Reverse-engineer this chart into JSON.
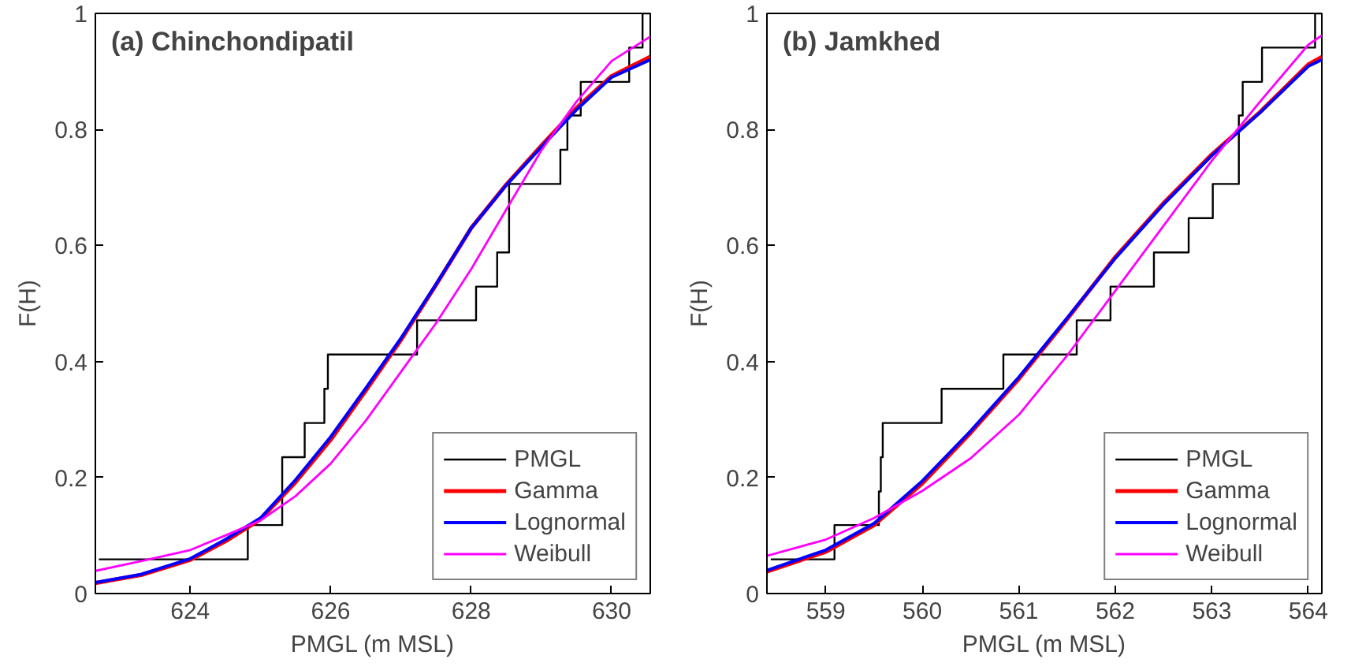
{
  "chart_data": [
    {
      "type": "line",
      "annotations": [
        "(a) Chinchondipatil"
      ],
      "xlabel": "PMGL (m MSL)",
      "ylabel": "F(H)",
      "xlim": [
        622.65,
        630.55
      ],
      "ylim": [
        0,
        1
      ],
      "xticks": [
        624,
        626,
        628,
        630
      ],
      "yticks": [
        0,
        0.2,
        0.4,
        0.6,
        0.8,
        1
      ],
      "grid": false,
      "legend": "bottom right",
      "series": [
        {
          "name": "PMGL",
          "type": "step",
          "color": "#000000",
          "x": [
            622.7,
            624.82,
            625.31,
            625.63,
            625.91,
            625.96,
            627.23,
            628.07,
            628.37,
            628.54,
            629.27,
            629.37,
            629.56,
            630.25,
            630.44,
            630.55
          ],
          "values": [
            0.059,
            0.118,
            0.235,
            0.294,
            0.353,
            0.412,
            0.471,
            0.529,
            0.588,
            0.706,
            0.765,
            0.824,
            0.882,
            0.941,
            1.0,
            1.0
          ]
        },
        {
          "name": "Gamma",
          "color": "#ff0000",
          "x": [
            622.65,
            623.3,
            624,
            624.5,
            625,
            625.5,
            626,
            626.5,
            627,
            627.5,
            628,
            628.5,
            629,
            629.5,
            630,
            630.55
          ],
          "values": [
            0.018,
            0.032,
            0.058,
            0.09,
            0.128,
            0.192,
            0.265,
            0.35,
            0.437,
            0.532,
            0.63,
            0.705,
            0.772,
            0.837,
            0.892,
            0.925
          ]
        },
        {
          "name": "Lognormal",
          "color": "#0000ff",
          "x": [
            622.65,
            623.3,
            624,
            624.5,
            625,
            625.5,
            626,
            626.5,
            627,
            627.5,
            628,
            628.5,
            629,
            629.5,
            630,
            630.55
          ],
          "values": [
            0.019,
            0.033,
            0.06,
            0.093,
            0.13,
            0.196,
            0.27,
            0.354,
            0.44,
            0.533,
            0.63,
            0.704,
            0.77,
            0.834,
            0.89,
            0.92
          ]
        },
        {
          "name": "Weibull",
          "color": "#ff00ff",
          "x": [
            622.65,
            623.3,
            624,
            624.5,
            625,
            625.5,
            626,
            626.5,
            627,
            627.5,
            628,
            628.5,
            629,
            629.5,
            630,
            630.55
          ],
          "values": [
            0.039,
            0.056,
            0.075,
            0.1,
            0.126,
            0.168,
            0.224,
            0.298,
            0.382,
            0.466,
            0.559,
            0.662,
            0.764,
            0.848,
            0.918,
            0.96
          ]
        }
      ]
    },
    {
      "type": "line",
      "annotations": [
        "(b) Jamkhed"
      ],
      "xlabel": "PMGL (m MSL)",
      "ylabel": "F(H)",
      "xlim": [
        558.39,
        564.14
      ],
      "ylim": [
        0,
        1
      ],
      "xticks": [
        559,
        560,
        561,
        562,
        563,
        564
      ],
      "yticks": [
        0,
        0.2,
        0.4,
        0.6,
        0.8,
        1
      ],
      "grid": false,
      "legend": "bottom right",
      "series": [
        {
          "name": "PMGL",
          "type": "step",
          "color": "#000000",
          "x": [
            558.43,
            559.09,
            559.55,
            559.57,
            559.59,
            560.2,
            560.84,
            561.6,
            561.95,
            562.4,
            562.76,
            563.01,
            563.28,
            563.32,
            563.52,
            564.07,
            564.14
          ],
          "values": [
            0.059,
            0.118,
            0.176,
            0.235,
            0.294,
            0.353,
            0.412,
            0.471,
            0.529,
            0.588,
            0.647,
            0.706,
            0.824,
            0.882,
            0.941,
            1.0,
            1.0
          ]
        },
        {
          "name": "Gamma",
          "color": "#ff0000",
          "x": [
            558.39,
            559,
            559.5,
            560,
            560.5,
            561,
            561.5,
            562,
            562.5,
            563,
            563.5,
            564,
            564.14
          ],
          "values": [
            0.038,
            0.072,
            0.118,
            0.19,
            0.277,
            0.37,
            0.473,
            0.58,
            0.673,
            0.757,
            0.83,
            0.912,
            0.925
          ]
        },
        {
          "name": "Lognormal",
          "color": "#0000ff",
          "x": [
            558.39,
            559,
            559.5,
            560,
            560.5,
            561,
            561.5,
            562,
            562.5,
            563,
            563.5,
            564,
            564.14
          ],
          "values": [
            0.04,
            0.075,
            0.121,
            0.194,
            0.28,
            0.373,
            0.475,
            0.578,
            0.671,
            0.755,
            0.829,
            0.909,
            0.92
          ]
        },
        {
          "name": "Weibull",
          "color": "#ff00ff",
          "x": [
            558.39,
            559,
            559.5,
            560,
            560.5,
            561,
            561.5,
            562,
            562.5,
            563,
            563.5,
            564,
            564.14
          ],
          "values": [
            0.065,
            0.093,
            0.13,
            0.177,
            0.233,
            0.308,
            0.41,
            0.522,
            0.634,
            0.746,
            0.848,
            0.946,
            0.962
          ]
        }
      ]
    }
  ]
}
